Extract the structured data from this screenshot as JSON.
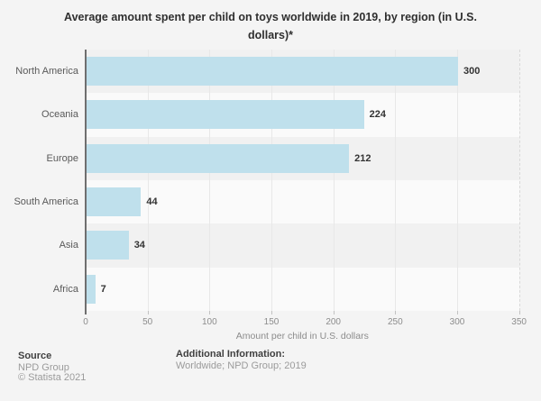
{
  "title": "Average amount spent per child on toys worldwide in 2019, by region (in U.S. dollars)*",
  "chart_data": {
    "type": "bar",
    "orientation": "horizontal",
    "categories": [
      "North America",
      "Oceania",
      "Europe",
      "South America",
      "Asia",
      "Africa"
    ],
    "values": [
      300,
      224,
      212,
      44,
      34,
      7
    ],
    "xlabel": "Amount per child in U.S. dollars",
    "xticks": [
      0,
      50,
      100,
      150,
      200,
      250,
      300,
      350
    ],
    "xlim": [
      0,
      350
    ],
    "grid": "vertical",
    "value_labels": true,
    "legend": "none",
    "bar_color": "#bfe0ec",
    "stripe_color_odd_rows": "#f1f1f1",
    "stripe_color_even_rows": "#fafafa"
  },
  "footer": {
    "source_heading": "Source",
    "source_line1": "NPD Group",
    "source_line2": "© Statista 2021",
    "additional_heading": "Additional Information:",
    "additional_text": "Worldwide; NPD Group; 2019"
  }
}
